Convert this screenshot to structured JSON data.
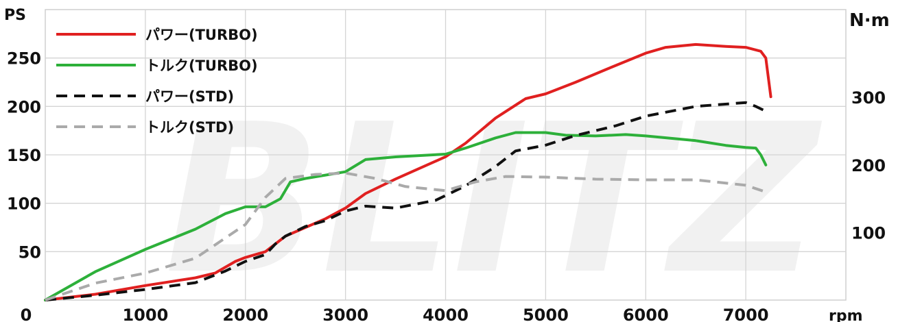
{
  "chart_data": {
    "type": "line",
    "watermark": "BLITZ",
    "x_unit": "rpm",
    "y_left_unit": "PS",
    "y_right_unit": "N·m",
    "x_ticks": [
      0,
      1000,
      2000,
      3000,
      4000,
      5000,
      6000,
      7000
    ],
    "x_tick_labels": [
      "0",
      "1000",
      "2000",
      "3000",
      "4000",
      "5000",
      "6000",
      "7000"
    ],
    "y_left_ticks": [
      50,
      100,
      150,
      200,
      250
    ],
    "y_left_tick_labels": [
      "50",
      "100",
      "150",
      "200",
      "250"
    ],
    "y_right_ticks": [
      100,
      200,
      300
    ],
    "y_right_tick_labels": [
      "100",
      "200",
      "300"
    ],
    "xlim": [
      0,
      8000
    ],
    "y_left_lim": [
      0,
      300
    ],
    "y_right_lim": [
      0,
      430
    ],
    "grid": true,
    "legend_position": "top-left",
    "series": [
      {
        "name": "パワー(TURBO)",
        "axis": "left",
        "color": "#e02020",
        "style": "solid",
        "points": [
          [
            0,
            0
          ],
          [
            500,
            6
          ],
          [
            1000,
            15
          ],
          [
            1500,
            23
          ],
          [
            1700,
            28
          ],
          [
            1900,
            40
          ],
          [
            2000,
            44
          ],
          [
            2200,
            50
          ],
          [
            2300,
            58
          ],
          [
            2400,
            66
          ],
          [
            2600,
            75
          ],
          [
            2800,
            84
          ],
          [
            3000,
            95
          ],
          [
            3200,
            110
          ],
          [
            3500,
            125
          ],
          [
            4000,
            148
          ],
          [
            4200,
            162
          ],
          [
            4500,
            188
          ],
          [
            4800,
            208
          ],
          [
            5000,
            213
          ],
          [
            5300,
            225
          ],
          [
            5600,
            238
          ],
          [
            6000,
            255
          ],
          [
            6200,
            261
          ],
          [
            6500,
            264
          ],
          [
            6800,
            262
          ],
          [
            7000,
            261
          ],
          [
            7150,
            257
          ],
          [
            7200,
            250
          ],
          [
            7250,
            210
          ]
        ]
      },
      {
        "name": "トルク(TURBO)",
        "axis": "right",
        "color": "#2db03a",
        "style": "solid",
        "points": [
          [
            0,
            0
          ],
          [
            500,
            42
          ],
          [
            1000,
            75
          ],
          [
            1500,
            105
          ],
          [
            1800,
            128
          ],
          [
            2000,
            138
          ],
          [
            2200,
            138
          ],
          [
            2350,
            150
          ],
          [
            2450,
            175
          ],
          [
            2600,
            180
          ],
          [
            3000,
            190
          ],
          [
            3200,
            208
          ],
          [
            3500,
            212
          ],
          [
            4000,
            216
          ],
          [
            4200,
            225
          ],
          [
            4500,
            240
          ],
          [
            4700,
            248
          ],
          [
            5000,
            248
          ],
          [
            5200,
            244
          ],
          [
            5500,
            243
          ],
          [
            5800,
            245
          ],
          [
            6000,
            243
          ],
          [
            6500,
            236
          ],
          [
            6800,
            229
          ],
          [
            7000,
            226
          ],
          [
            7100,
            225
          ],
          [
            7150,
            215
          ],
          [
            7200,
            200
          ]
        ]
      },
      {
        "name": "パワー(STD)",
        "axis": "left",
        "color": "#111111",
        "style": "dashed",
        "points": [
          [
            0,
            0
          ],
          [
            500,
            5
          ],
          [
            1000,
            11
          ],
          [
            1500,
            18
          ],
          [
            1800,
            30
          ],
          [
            2000,
            40
          ],
          [
            2200,
            47
          ],
          [
            2300,
            58
          ],
          [
            2400,
            66
          ],
          [
            2600,
            76
          ],
          [
            2800,
            82
          ],
          [
            3000,
            92
          ],
          [
            3200,
            97
          ],
          [
            3500,
            95
          ],
          [
            3900,
            103
          ],
          [
            4200,
            118
          ],
          [
            4500,
            138
          ],
          [
            4700,
            154
          ],
          [
            5000,
            160
          ],
          [
            5300,
            170
          ],
          [
            5700,
            180
          ],
          [
            6000,
            190
          ],
          [
            6500,
            200
          ],
          [
            7000,
            204
          ],
          [
            7100,
            200
          ],
          [
            7200,
            195
          ]
        ]
      },
      {
        "name": "トルク(STD)",
        "axis": "right",
        "color": "#aaaaaa",
        "style": "dashed",
        "points": [
          [
            0,
            0
          ],
          [
            500,
            25
          ],
          [
            1000,
            40
          ],
          [
            1500,
            62
          ],
          [
            1800,
            92
          ],
          [
            2000,
            112
          ],
          [
            2200,
            152
          ],
          [
            2400,
            180
          ],
          [
            2700,
            186
          ],
          [
            3000,
            188
          ],
          [
            3300,
            180
          ],
          [
            3600,
            168
          ],
          [
            4000,
            162
          ],
          [
            4300,
            175
          ],
          [
            4600,
            183
          ],
          [
            5000,
            182
          ],
          [
            5500,
            179
          ],
          [
            6000,
            178
          ],
          [
            6500,
            178
          ],
          [
            7000,
            170
          ],
          [
            7100,
            165
          ],
          [
            7200,
            160
          ]
        ]
      }
    ]
  }
}
